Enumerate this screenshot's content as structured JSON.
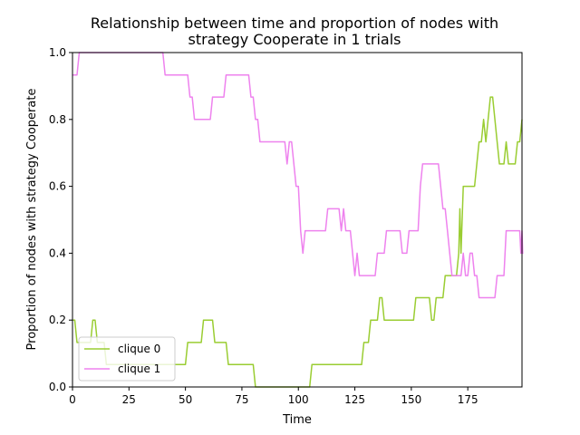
{
  "chart_data": {
    "type": "line",
    "title_line1": "Relationship between time and proportion of nodes with",
    "title_line2": "strategy Cooperate in 1 trials",
    "xlabel": "Time",
    "ylabel": "Proportion of nodes with strategy Cooperate",
    "xlim": [
      0,
      199
    ],
    "ylim": [
      0.0,
      1.0
    ],
    "x_ticks": [
      0,
      25,
      50,
      75,
      100,
      125,
      150,
      175
    ],
    "x_tick_labels": [
      "0",
      "25",
      "50",
      "75",
      "100",
      "125",
      "150",
      "175"
    ],
    "y_ticks": [
      0.0,
      0.2,
      0.4,
      0.6,
      0.8,
      1.0
    ],
    "y_tick_labels": [
      "0.0",
      "0.2",
      "0.4",
      "0.6",
      "0.8",
      "1.0"
    ],
    "grid": false,
    "legend_placement": "lower-left",
    "series": [
      {
        "name": "clique 0",
        "color": "#9acd32",
        "points": [
          [
            0,
            0.2
          ],
          [
            1,
            0.2
          ],
          [
            2,
            0.133
          ],
          [
            8,
            0.133
          ],
          [
            9,
            0.2
          ],
          [
            10,
            0.2
          ],
          [
            11,
            0.133
          ],
          [
            13,
            0.133
          ],
          [
            14,
            0.133
          ],
          [
            15,
            0.067
          ],
          [
            19,
            0.067
          ],
          [
            20,
            0.067
          ],
          [
            50,
            0.067
          ],
          [
            51,
            0.133
          ],
          [
            57,
            0.133
          ],
          [
            58,
            0.2
          ],
          [
            62,
            0.2
          ],
          [
            63,
            0.133
          ],
          [
            68,
            0.133
          ],
          [
            69,
            0.067
          ],
          [
            80,
            0.067
          ],
          [
            81,
            0.0
          ],
          [
            105,
            0.0
          ],
          [
            106,
            0.067
          ],
          [
            128,
            0.067
          ],
          [
            129,
            0.133
          ],
          [
            131,
            0.133
          ],
          [
            132,
            0.2
          ],
          [
            135,
            0.2
          ],
          [
            136,
            0.267
          ],
          [
            137,
            0.267
          ],
          [
            138,
            0.2
          ],
          [
            151,
            0.2
          ],
          [
            152,
            0.267
          ],
          [
            158,
            0.267
          ],
          [
            159,
            0.2
          ],
          [
            160,
            0.2
          ],
          [
            161,
            0.267
          ],
          [
            164,
            0.267
          ],
          [
            165,
            0.333
          ],
          [
            170,
            0.333
          ],
          [
            171,
            0.4
          ],
          [
            171.5,
            0.533
          ],
          [
            172,
            0.4
          ],
          [
            173,
            0.6
          ],
          [
            178,
            0.6
          ],
          [
            179,
            0.667
          ],
          [
            180,
            0.733
          ],
          [
            181,
            0.733
          ],
          [
            182,
            0.8
          ],
          [
            183,
            0.733
          ],
          [
            184,
            0.8
          ],
          [
            185,
            0.867
          ],
          [
            186,
            0.867
          ],
          [
            187,
            0.8
          ],
          [
            188,
            0.733
          ],
          [
            189,
            0.667
          ],
          [
            191,
            0.667
          ],
          [
            192,
            0.733
          ],
          [
            193,
            0.667
          ],
          [
            196,
            0.667
          ],
          [
            197,
            0.733
          ],
          [
            198,
            0.733
          ],
          [
            199,
            0.8
          ]
        ]
      },
      {
        "name": "clique 1",
        "color": "#ee82ee",
        "points": [
          [
            0,
            0.933
          ],
          [
            2,
            0.933
          ],
          [
            3,
            1.0
          ],
          [
            40,
            1.0
          ],
          [
            41,
            0.933
          ],
          [
            51,
            0.933
          ],
          [
            52,
            0.867
          ],
          [
            53,
            0.867
          ],
          [
            54,
            0.8
          ],
          [
            61,
            0.8
          ],
          [
            62,
            0.867
          ],
          [
            67,
            0.867
          ],
          [
            68,
            0.933
          ],
          [
            78,
            0.933
          ],
          [
            79,
            0.867
          ],
          [
            80,
            0.867
          ],
          [
            81,
            0.8
          ],
          [
            82,
            0.8
          ],
          [
            83,
            0.733
          ],
          [
            94,
            0.733
          ],
          [
            95,
            0.667
          ],
          [
            96,
            0.733
          ],
          [
            97,
            0.733
          ],
          [
            98,
            0.667
          ],
          [
            99,
            0.6
          ],
          [
            100,
            0.6
          ],
          [
            101,
            0.467
          ],
          [
            102,
            0.4
          ],
          [
            103,
            0.467
          ],
          [
            112,
            0.467
          ],
          [
            113,
            0.533
          ],
          [
            118,
            0.533
          ],
          [
            119,
            0.467
          ],
          [
            120,
            0.533
          ],
          [
            121,
            0.467
          ],
          [
            123,
            0.467
          ],
          [
            124,
            0.4
          ],
          [
            125,
            0.333
          ],
          [
            126,
            0.4
          ],
          [
            127,
            0.333
          ],
          [
            134,
            0.333
          ],
          [
            135,
            0.4
          ],
          [
            138,
            0.4
          ],
          [
            139,
            0.467
          ],
          [
            145,
            0.467
          ],
          [
            146,
            0.4
          ],
          [
            148,
            0.4
          ],
          [
            149,
            0.467
          ],
          [
            153,
            0.467
          ],
          [
            154,
            0.6
          ],
          [
            155,
            0.667
          ],
          [
            162,
            0.667
          ],
          [
            163,
            0.6
          ],
          [
            164,
            0.533
          ],
          [
            165,
            0.533
          ],
          [
            166,
            0.467
          ],
          [
            167,
            0.4
          ],
          [
            168,
            0.333
          ],
          [
            172,
            0.333
          ],
          [
            173,
            0.4
          ],
          [
            174,
            0.333
          ],
          [
            175,
            0.333
          ],
          [
            176,
            0.4
          ],
          [
            177,
            0.4
          ],
          [
            178,
            0.333
          ],
          [
            179,
            0.333
          ],
          [
            180,
            0.267
          ],
          [
            187,
            0.267
          ],
          [
            188,
            0.333
          ],
          [
            191,
            0.333
          ],
          [
            192,
            0.467
          ],
          [
            198,
            0.467
          ],
          [
            198.5,
            0.4
          ],
          [
            199,
            0.467
          ],
          [
            199.3,
            0.4
          ],
          [
            199.6,
            0.4
          ]
        ]
      }
    ]
  }
}
